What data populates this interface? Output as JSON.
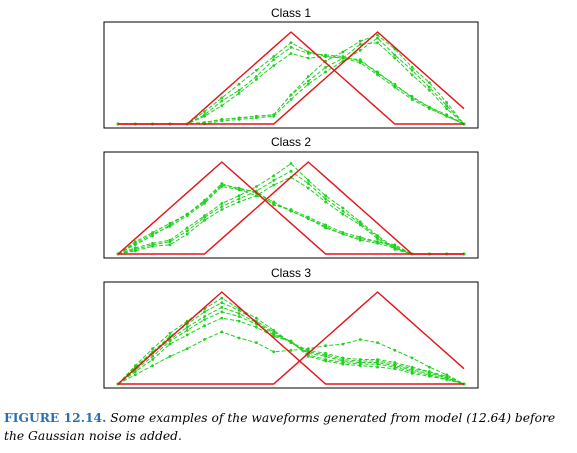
{
  "figure": {
    "label": "FIGURE 12.14.",
    "caption_text": "Some examples of the waveforms generated from model (12.64) before the Gaussian noise is added."
  },
  "colors": {
    "truth": "#e8121a",
    "examples": "#1fd21f",
    "frame": "#000000"
  },
  "chart_data": [
    {
      "type": "line",
      "title": "Class 1",
      "x": [
        1,
        2,
        3,
        4,
        5,
        6,
        7,
        8,
        9,
        10,
        11,
        12,
        13,
        14,
        15,
        16,
        17,
        18,
        19,
        20,
        21
      ],
      "ylim": [
        0,
        6
      ],
      "reference_lines": [
        [
          0,
          0,
          0,
          0,
          0,
          1,
          2,
          3,
          4,
          5,
          6,
          5,
          4,
          3,
          2,
          1,
          0,
          0,
          0,
          0,
          0
        ],
        [
          0,
          0,
          0,
          0,
          0,
          0,
          0,
          0,
          0,
          0,
          1,
          2,
          3,
          4,
          5,
          6,
          5,
          4,
          3,
          2,
          1
        ]
      ],
      "series": [
        {
          "values": [
            0,
            0,
            0,
            0,
            0,
            0.8,
            1.7,
            2.6,
            3.5,
            4.4,
            5.3,
            4.7,
            4.4,
            4.3,
            4.0,
            3.2,
            2.4,
            1.6,
            1.0,
            0.5,
            0
          ]
        },
        {
          "values": [
            0,
            0,
            0,
            0,
            0,
            0.6,
            1.5,
            2.2,
            3.1,
            4.2,
            5.0,
            4.6,
            4.5,
            4.4,
            4.1,
            3.4,
            2.5,
            1.8,
            1.1,
            0.5,
            0
          ]
        },
        {
          "values": [
            0,
            0,
            0,
            0,
            0,
            0.5,
            1.2,
            2.0,
            2.9,
            3.8,
            4.6,
            4.3,
            4.4,
            4.3,
            4.2,
            3.3,
            2.6,
            1.7,
            1.1,
            0.6,
            0
          ]
        },
        {
          "values": [
            0,
            0,
            0,
            0,
            0,
            0.1,
            0.3,
            0.4,
            0.5,
            0.6,
            1.9,
            2.8,
            3.7,
            4.3,
            5.2,
            5.3,
            4.3,
            3.2,
            2.2,
            1.0,
            0
          ]
        },
        {
          "values": [
            0,
            0,
            0,
            0,
            0,
            0,
            0.2,
            0.3,
            0.4,
            0.5,
            1.6,
            2.6,
            3.4,
            4.1,
            4.8,
            5.6,
            4.5,
            3.5,
            2.4,
            1.2,
            0
          ]
        },
        {
          "values": [
            0,
            0,
            0,
            0,
            0,
            0.1,
            0.3,
            0.4,
            0.5,
            0.6,
            1.9,
            3.1,
            4.1,
            4.7,
            5.4,
            5.8,
            4.9,
            3.7,
            2.7,
            1.4,
            0
          ]
        }
      ]
    },
    {
      "type": "line",
      "title": "Class 2",
      "x": [
        1,
        2,
        3,
        4,
        5,
        6,
        7,
        8,
        9,
        10,
        11,
        12,
        13,
        14,
        15,
        16,
        17,
        18,
        19,
        20,
        21
      ],
      "ylim": [
        0,
        6
      ],
      "reference_lines": [
        [
          0,
          1,
          2,
          3,
          4,
          5,
          6,
          5,
          4,
          3,
          2,
          1,
          0,
          0,
          0,
          0,
          0,
          0,
          0,
          0,
          0
        ],
        [
          0,
          0,
          0,
          0,
          0,
          0,
          1,
          2,
          3,
          4,
          5,
          6,
          5,
          4,
          3,
          2,
          1,
          0,
          0,
          0,
          0
        ]
      ],
      "series": [
        {
          "values": [
            0,
            0.8,
            1.4,
            2.0,
            2.6,
            3.4,
            4.5,
            4.3,
            4.0,
            3.4,
            2.8,
            2.3,
            1.8,
            1.3,
            1.0,
            0.8,
            0.5,
            0,
            0,
            0,
            0
          ]
        },
        {
          "values": [
            0,
            0.7,
            1.3,
            1.8,
            2.5,
            3.3,
            4.4,
            4.2,
            4.1,
            3.2,
            2.9,
            2.4,
            1.9,
            1.4,
            1.1,
            0.8,
            0.6,
            0,
            0,
            0,
            0
          ]
        },
        {
          "values": [
            0,
            0.6,
            1.2,
            1.9,
            2.6,
            3.5,
            4.6,
            4.2,
            3.8,
            3.3,
            2.8,
            2.3,
            1.7,
            1.3,
            0.9,
            0.7,
            0.4,
            0,
            0,
            0,
            0
          ]
        },
        {
          "values": [
            0,
            0.4,
            0.7,
            0.9,
            1.7,
            2.5,
            3.3,
            3.8,
            4.4,
            5.1,
            5.9,
            4.8,
            3.8,
            3.0,
            2.1,
            1.2,
            0.4,
            0,
            0,
            0,
            0
          ]
        },
        {
          "values": [
            0,
            0.3,
            0.6,
            0.8,
            1.5,
            2.4,
            3.1,
            3.6,
            4.1,
            4.8,
            5.4,
            4.6,
            3.6,
            2.8,
            2.0,
            1.1,
            0.4,
            0,
            0,
            0,
            0
          ]
        },
        {
          "values": [
            0,
            0.2,
            0.5,
            0.6,
            1.3,
            2.2,
            2.9,
            3.4,
            3.8,
            4.5,
            5.0,
            4.3,
            3.4,
            2.6,
            1.9,
            1.0,
            0.3,
            0,
            0,
            0,
            0
          ]
        }
      ]
    },
    {
      "type": "line",
      "title": "Class 3",
      "x": [
        1,
        2,
        3,
        4,
        5,
        6,
        7,
        8,
        9,
        10,
        11,
        12,
        13,
        14,
        15,
        16,
        17,
        18,
        19,
        20,
        21
      ],
      "ylim": [
        0,
        6
      ],
      "reference_lines": [
        [
          0,
          1,
          2,
          3,
          4,
          5,
          6,
          5,
          4,
          3,
          2,
          1,
          0,
          0,
          0,
          0,
          0,
          0,
          0,
          0,
          0
        ],
        [
          0,
          0,
          0,
          0,
          0,
          0,
          0,
          0,
          0,
          0,
          1,
          2,
          3,
          4,
          5,
          6,
          5,
          4,
          3,
          2,
          1
        ]
      ],
      "series": [
        {
          "values": [
            0,
            1.2,
            2.3,
            3.3,
            4.1,
            4.9,
            5.6,
            4.9,
            4.3,
            3.5,
            2.7,
            2.2,
            2.0,
            1.7,
            1.6,
            1.6,
            1.4,
            1.1,
            0.8,
            0.5,
            0
          ]
        },
        {
          "values": [
            0,
            1.1,
            2.1,
            3.1,
            3.9,
            4.7,
            5.3,
            4.8,
            4.1,
            3.4,
            2.7,
            2.1,
            1.9,
            1.6,
            1.5,
            1.5,
            1.3,
            1.0,
            0.8,
            0.4,
            0
          ]
        },
        {
          "values": [
            0,
            1.0,
            2.0,
            2.9,
            3.7,
            4.4,
            5.0,
            4.6,
            4.0,
            3.3,
            2.7,
            2.0,
            1.8,
            1.5,
            1.4,
            1.4,
            1.2,
            0.9,
            0.7,
            0.4,
            0
          ]
        },
        {
          "values": [
            0,
            0.9,
            1.8,
            2.8,
            3.5,
            4.2,
            4.7,
            4.4,
            3.9,
            3.2,
            2.8,
            1.9,
            1.6,
            1.4,
            1.3,
            1.3,
            1.1,
            0.8,
            0.6,
            0.3,
            0
          ]
        },
        {
          "values": [
            0,
            0.8,
            1.6,
            2.6,
            3.2,
            3.8,
            4.3,
            4.1,
            3.7,
            3.1,
            2.8,
            1.8,
            1.5,
            1.3,
            1.2,
            1.1,
            1.0,
            0.7,
            0.5,
            0.3,
            0
          ]
        },
        {
          "values": [
            0,
            0.6,
            1.2,
            1.8,
            2.3,
            2.9,
            3.4,
            3.0,
            2.7,
            2.1,
            2.2,
            2.3,
            2.5,
            2.6,
            2.9,
            2.7,
            2.2,
            1.7,
            1.1,
            0.6,
            0
          ]
        }
      ]
    }
  ]
}
